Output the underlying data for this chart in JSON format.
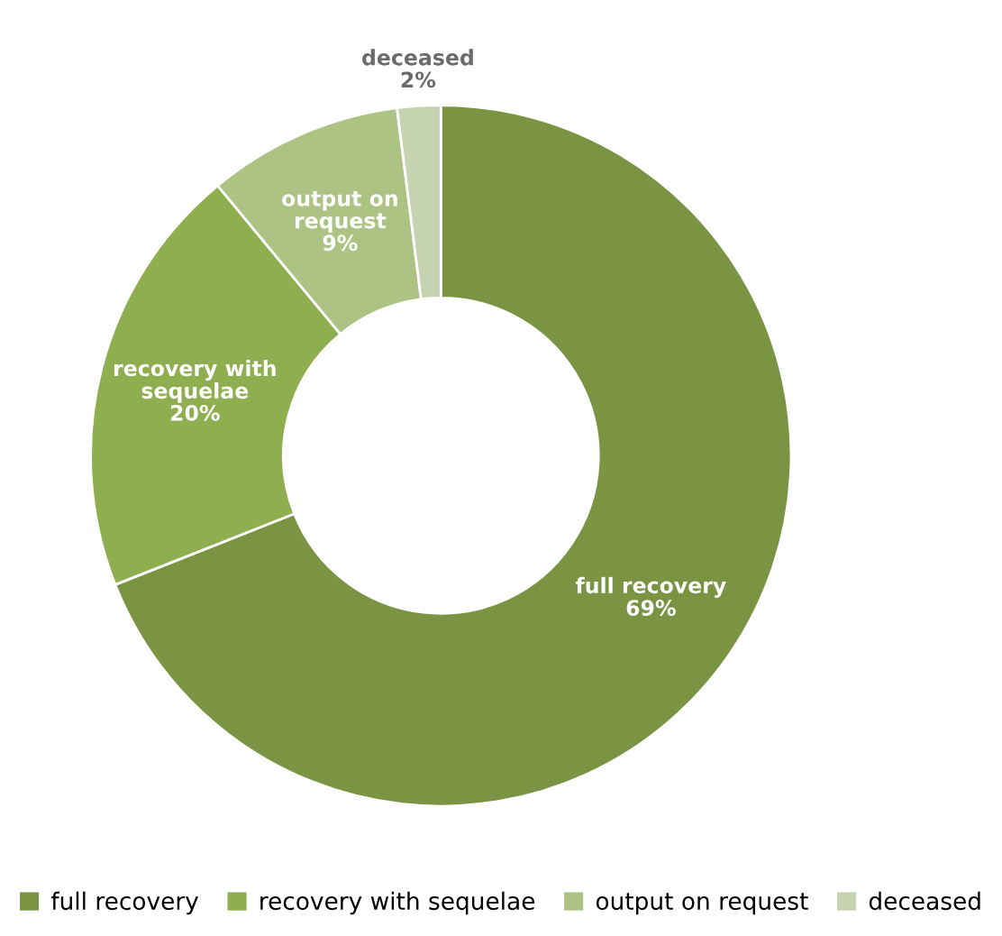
{
  "chart_data": {
    "type": "donut",
    "categories": [
      "full recovery",
      "recovery with sequelae",
      "output on request",
      "deceased"
    ],
    "values": [
      69,
      20,
      9,
      2
    ],
    "value_labels": [
      "69%",
      "20%",
      "9%",
      "2%"
    ],
    "colors": [
      "#7a9444",
      "#8fae50",
      "#adc383",
      "#c5d3b0"
    ],
    "legend": "bottom"
  }
}
